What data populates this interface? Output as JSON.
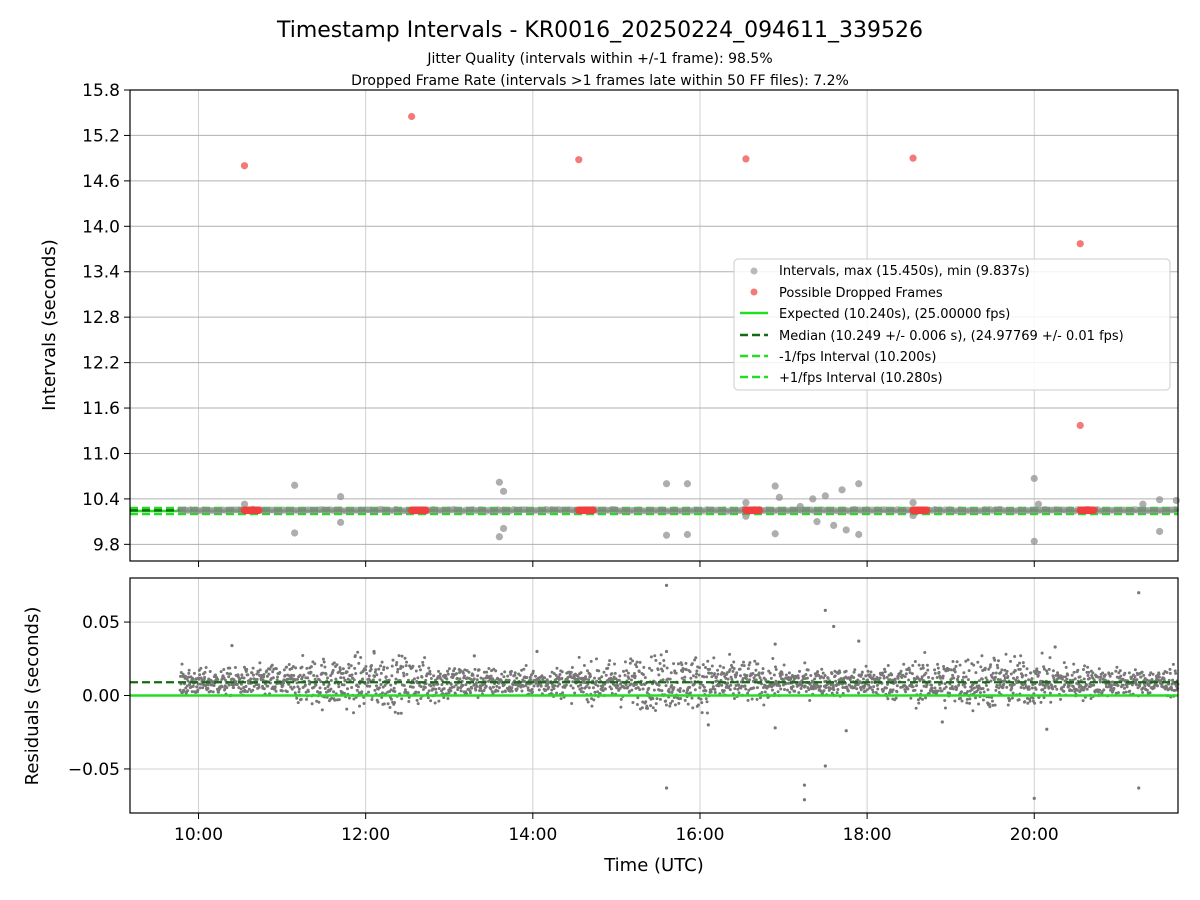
{
  "chart_data": [
    {
      "type": "scatter",
      "title": "Timestamp Intervals - KR0016_20250224_094611_339526",
      "subtitle_1": "Jitter Quality (intervals within +/-1 frame): 98.5%",
      "subtitle_2": "Dropped Frame Rate (intervals >1 frames late within 50 FF files): 7.2%",
      "ylabel": "Intervals (seconds)",
      "xlim_hours": [
        9.18,
        21.72
      ],
      "ylim": [
        9.58,
        15.8
      ],
      "yticks": [
        9.8,
        10.4,
        11.0,
        11.6,
        12.2,
        12.8,
        13.4,
        14.0,
        14.6,
        15.2,
        15.8
      ],
      "ytick_labels": [
        "9.8",
        "10.4",
        "11.0",
        "11.6",
        "12.2",
        "12.8",
        "13.4",
        "14.0",
        "14.6",
        "15.2",
        "15.8"
      ],
      "grid": true,
      "legend_position": "center-right",
      "legend": [
        "Intervals, max (15.450s), min (9.837s)",
        "Possible Dropped Frames",
        "Expected (10.240s), (25.00000 fps)",
        "Median (10.249 +/- 0.006 s), (24.97769 +/- 0.01 fps)",
        "-1/fps Interval (10.200s)",
        "+1/fps Interval (10.280s)"
      ],
      "lines": {
        "expected": 10.24,
        "median": 10.249,
        "minus_one_fps": 10.2,
        "plus_one_fps": 10.28
      },
      "dropped_frames": [
        {
          "x": 10.55,
          "y": 14.8
        },
        {
          "x": 12.55,
          "y": 15.45
        },
        {
          "x": 14.55,
          "y": 14.88
        },
        {
          "x": 16.55,
          "y": 14.89
        },
        {
          "x": 18.55,
          "y": 14.9
        },
        {
          "x": 20.55,
          "y": 13.77
        },
        {
          "x": 20.55,
          "y": 11.37
        }
      ],
      "dropped_clusters": [
        {
          "x_start": 10.55,
          "x_end": 10.72,
          "y": 10.25
        },
        {
          "x_start": 12.55,
          "x_end": 12.72,
          "y": 10.25
        },
        {
          "x_start": 14.55,
          "x_end": 14.72,
          "y": 10.25
        },
        {
          "x_start": 16.55,
          "x_end": 16.72,
          "y": 10.25
        },
        {
          "x_start": 18.55,
          "x_end": 18.72,
          "y": 10.25
        },
        {
          "x_start": 20.55,
          "x_end": 20.72,
          "y": 10.25
        }
      ],
      "interval_outliers": [
        {
          "x": 10.55,
          "y": 10.33
        },
        {
          "x": 11.15,
          "y": 10.58
        },
        {
          "x": 11.15,
          "y": 9.95
        },
        {
          "x": 11.7,
          "y": 10.43
        },
        {
          "x": 11.7,
          "y": 10.09
        },
        {
          "x": 13.6,
          "y": 10.62
        },
        {
          "x": 13.65,
          "y": 10.5
        },
        {
          "x": 13.65,
          "y": 10.01
        },
        {
          "x": 13.6,
          "y": 9.9
        },
        {
          "x": 15.6,
          "y": 10.6
        },
        {
          "x": 15.6,
          "y": 9.92
        },
        {
          "x": 15.85,
          "y": 10.6
        },
        {
          "x": 15.85,
          "y": 9.93
        },
        {
          "x": 16.55,
          "y": 10.35
        },
        {
          "x": 16.55,
          "y": 10.17
        },
        {
          "x": 16.9,
          "y": 10.57
        },
        {
          "x": 16.95,
          "y": 10.42
        },
        {
          "x": 16.9,
          "y": 9.94
        },
        {
          "x": 17.2,
          "y": 10.3
        },
        {
          "x": 17.35,
          "y": 10.4
        },
        {
          "x": 17.4,
          "y": 10.1
        },
        {
          "x": 17.5,
          "y": 10.44
        },
        {
          "x": 17.6,
          "y": 10.05
        },
        {
          "x": 17.7,
          "y": 10.52
        },
        {
          "x": 17.75,
          "y": 9.99
        },
        {
          "x": 17.9,
          "y": 10.6
        },
        {
          "x": 17.9,
          "y": 9.93
        },
        {
          "x": 18.55,
          "y": 10.35
        },
        {
          "x": 18.55,
          "y": 10.18
        },
        {
          "x": 20.0,
          "y": 10.67
        },
        {
          "x": 20.0,
          "y": 9.84
        },
        {
          "x": 20.05,
          "y": 10.33
        },
        {
          "x": 21.3,
          "y": 10.33
        },
        {
          "x": 21.5,
          "y": 10.39
        },
        {
          "x": 21.5,
          "y": 9.97
        },
        {
          "x": 21.7,
          "y": 10.38
        }
      ]
    },
    {
      "type": "scatter",
      "xlabel": "Time (UTC)",
      "ylabel": "Residuals (seconds)",
      "xlim_hours": [
        9.18,
        21.72
      ],
      "ylim": [
        -0.08,
        0.08
      ],
      "yticks": [
        -0.05,
        0.0,
        0.05
      ],
      "ytick_labels": [
        "−0.05",
        "0.00",
        "0.05"
      ],
      "xticks_hours": [
        10,
        12,
        14,
        16,
        18,
        20
      ],
      "xtick_labels": [
        "10:00",
        "12:00",
        "14:00",
        "16:00",
        "18:00",
        "20:00"
      ],
      "grid": true,
      "lines": {
        "median_residual": 0.009,
        "expected_residual": 0.0
      },
      "data_x_range_hours": [
        9.78,
        21.72
      ],
      "band_center": 0.009,
      "band_spread": 0.01,
      "residual_outliers": [
        {
          "x": 15.6,
          "y": 0.075
        },
        {
          "x": 15.6,
          "y": -0.063
        },
        {
          "x": 17.5,
          "y": 0.058
        },
        {
          "x": 17.6,
          "y": 0.047
        },
        {
          "x": 17.5,
          "y": -0.048
        },
        {
          "x": 17.25,
          "y": -0.061
        },
        {
          "x": 17.25,
          "y": -0.071
        },
        {
          "x": 20.0,
          "y": -0.07
        },
        {
          "x": 21.25,
          "y": 0.07
        },
        {
          "x": 21.25,
          "y": -0.063
        },
        {
          "x": 17.9,
          "y": 0.037
        },
        {
          "x": 16.9,
          "y": 0.035
        },
        {
          "x": 16.9,
          "y": -0.022
        },
        {
          "x": 17.75,
          "y": -0.024
        },
        {
          "x": 20.15,
          "y": -0.023
        },
        {
          "x": 15.6,
          "y": 0.03
        },
        {
          "x": 14.05,
          "y": 0.03
        },
        {
          "x": 12.1,
          "y": 0.03
        },
        {
          "x": 20.25,
          "y": 0.033
        },
        {
          "x": 10.4,
          "y": 0.034
        },
        {
          "x": 16.1,
          "y": -0.02
        },
        {
          "x": 18.9,
          "y": -0.018
        },
        {
          "x": 13.3,
          "y": 0.027
        }
      ]
    }
  ],
  "colors": {
    "interval_points": "#8c8c8c",
    "dropped_points": "#f04040",
    "expected_line": "#22dd22",
    "median_line": "#136b13",
    "bound_lines": "#22dd22",
    "residual_points": "#777777",
    "grid": "#b0b0b0"
  }
}
